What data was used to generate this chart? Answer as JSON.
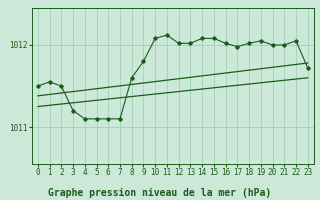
{
  "background_color": "#cce8d8",
  "grid_color": "#99ccaa",
  "line_color": "#1a5c1a",
  "title": "Graphe pression niveau de la mer (hPa)",
  "xlim": [
    -0.5,
    23.5
  ],
  "ylim": [
    1010.55,
    1012.45
  ],
  "yticks": [
    1011,
    1012
  ],
  "xticks": [
    0,
    1,
    2,
    3,
    4,
    5,
    6,
    7,
    8,
    9,
    10,
    11,
    12,
    13,
    14,
    15,
    16,
    17,
    18,
    19,
    20,
    21,
    22,
    23
  ],
  "main_line_x": [
    0,
    1,
    2,
    3,
    4,
    5,
    6,
    7,
    8,
    9,
    10,
    11,
    12,
    13,
    14,
    15,
    16,
    17,
    18,
    19,
    20,
    21,
    22,
    23
  ],
  "main_line_y": [
    1011.5,
    1011.55,
    1011.5,
    1011.2,
    1011.1,
    1011.1,
    1011.1,
    1011.1,
    1011.6,
    1011.8,
    1012.08,
    1012.12,
    1012.02,
    1012.02,
    1012.08,
    1012.08,
    1012.02,
    1011.98,
    1012.02,
    1012.05,
    1012.0,
    1012.0,
    1012.05,
    1011.72
  ],
  "trend1_x": [
    0,
    23
  ],
  "trend1_y": [
    1011.38,
    1011.78
  ],
  "trend2_x": [
    0,
    23
  ],
  "trend2_y": [
    1011.25,
    1011.6
  ],
  "title_fontsize": 7,
  "tick_fontsize": 5.5
}
